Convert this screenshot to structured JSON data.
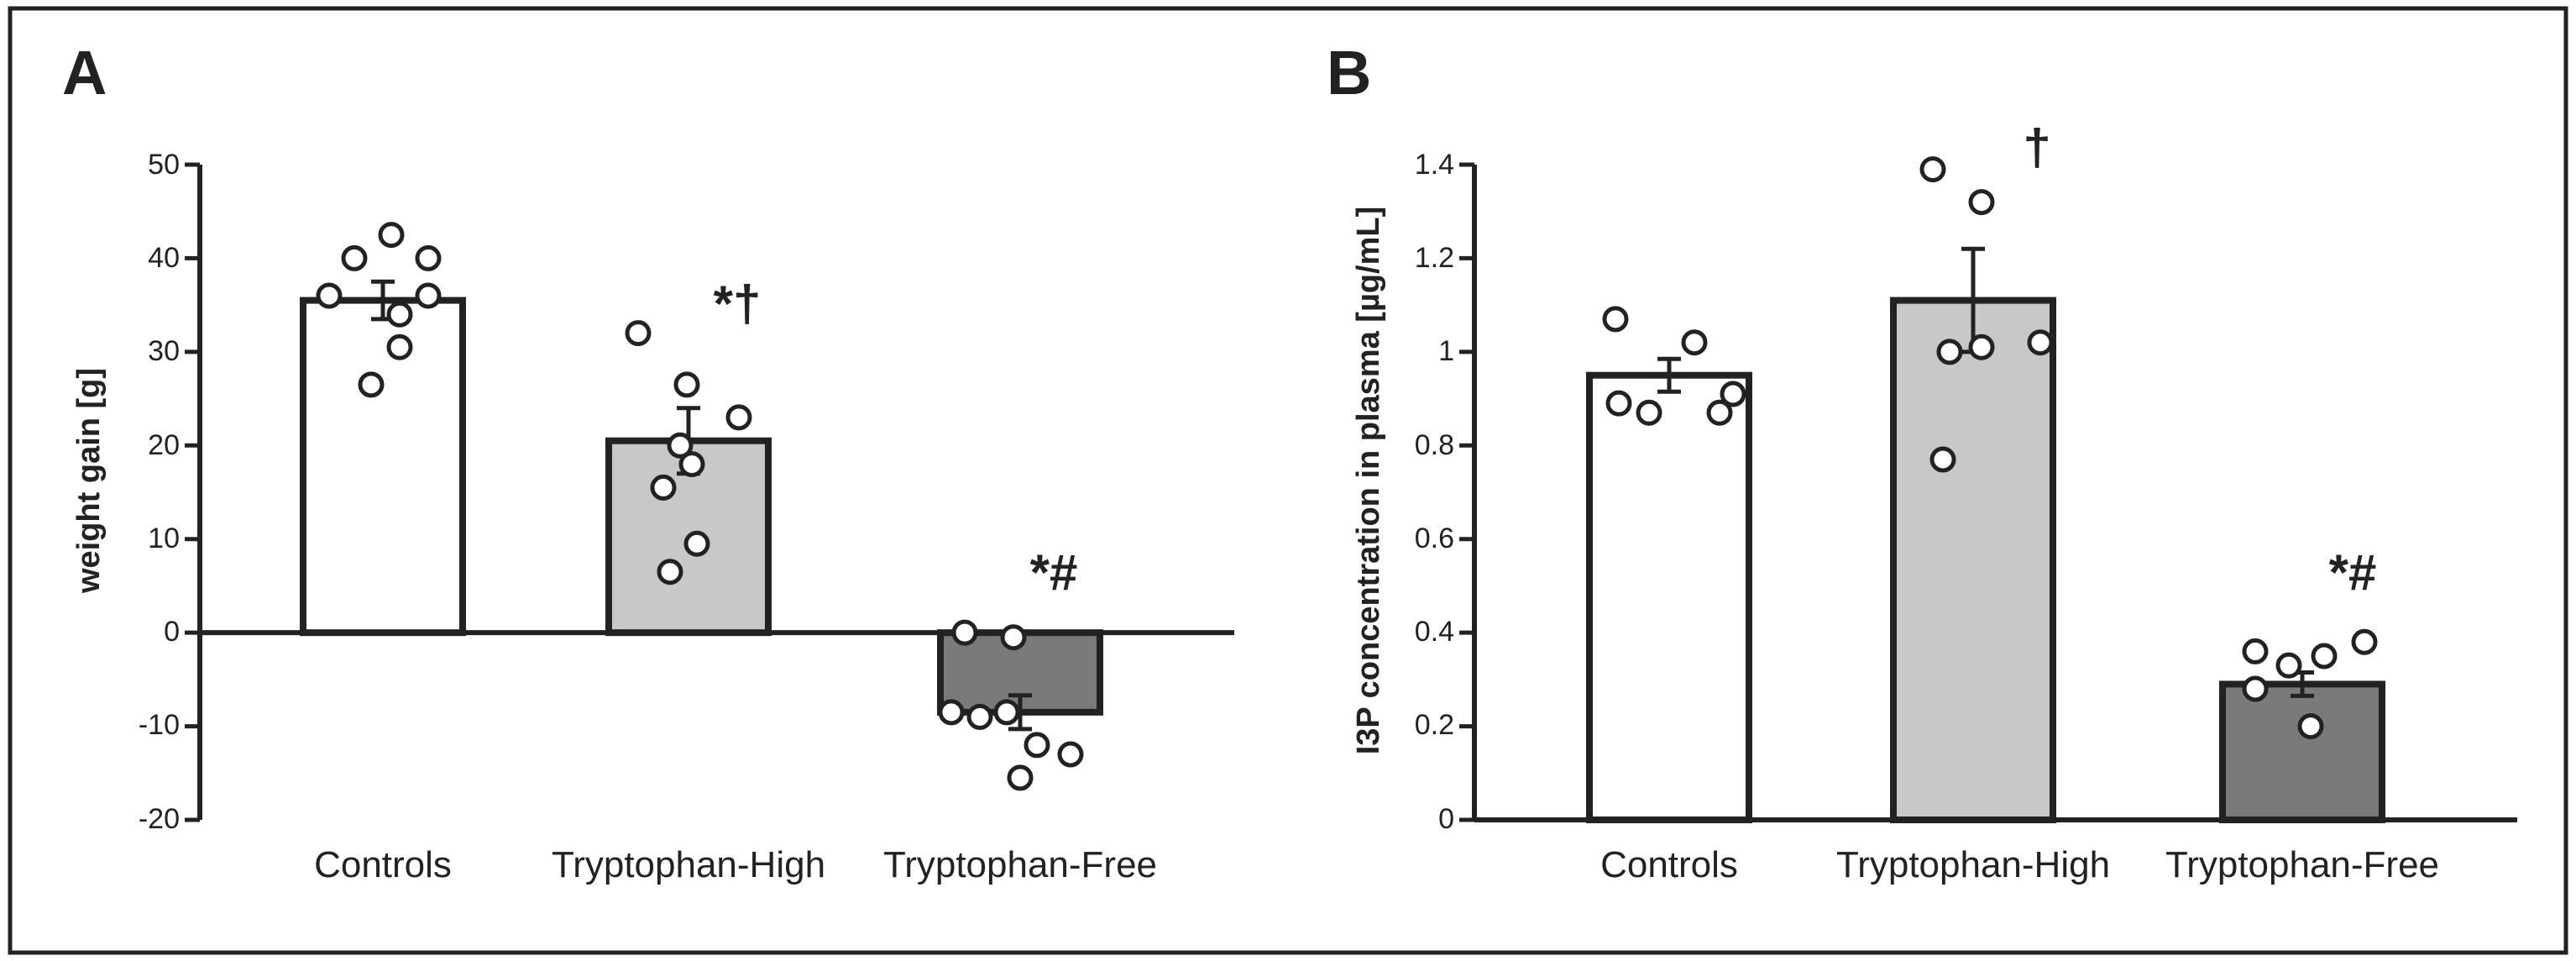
{
  "chart_data": [
    {
      "panel": "A",
      "type": "bar",
      "ylabel": "weight gain [g]",
      "ylim": [
        -20,
        50
      ],
      "yticks": [
        -20,
        -10,
        0,
        10,
        20,
        30,
        40,
        50
      ],
      "ytick_labels": [
        "-20",
        "-10",
        "0",
        "10",
        "20",
        "30",
        "40",
        "50"
      ],
      "categories": [
        "Controls",
        "Tryptophan-High",
        "Tryptophan-Free"
      ],
      "values": [
        35.5,
        20.5,
        -8.5
      ],
      "errors": [
        2.0,
        3.5,
        1.8
      ],
      "colors": [
        "#ffffff",
        "#c8c8c8",
        "#7a7a7a"
      ],
      "points": [
        [
          36,
          40,
          42.5,
          40,
          36,
          34,
          30.5,
          26.5
        ],
        [
          32,
          26.5,
          23,
          20,
          15.5,
          18,
          9.5,
          6.5
        ],
        [
          0,
          -0.5,
          -8.5,
          -9,
          -8.5,
          -12,
          -13,
          -15.5
        ]
      ],
      "annotations": [
        "",
        "*†",
        "*#"
      ]
    },
    {
      "panel": "B",
      "type": "bar",
      "ylabel": "I3P concentration in plasma [µg/mL]",
      "ylim": [
        0,
        1.4
      ],
      "yticks": [
        0,
        0.2,
        0.4,
        0.6,
        0.8,
        1.0,
        1.2,
        1.4
      ],
      "ytick_labels": [
        "0",
        "0.2",
        "0.4",
        "0.6",
        "0.8",
        "1",
        "1.2",
        "1.4"
      ],
      "categories": [
        "Controls",
        "Tryptophan-High",
        "Tryptophan-Free"
      ],
      "values": [
        0.95,
        1.11,
        0.29
      ],
      "errors": [
        0.035,
        0.11,
        0.025
      ],
      "colors": [
        "#ffffff",
        "#c8c8c8",
        "#7a7a7a"
      ],
      "points": [
        [
          1.07,
          0.89,
          0.87,
          1.02,
          0.87,
          0.91
        ],
        [
          1.39,
          1.32,
          1.0,
          1.01,
          1.02,
          0.77
        ],
        [
          0.36,
          0.28,
          0.33,
          0.35,
          0.38,
          0.2
        ]
      ],
      "annotations": [
        "",
        "†",
        "*#"
      ]
    }
  ]
}
